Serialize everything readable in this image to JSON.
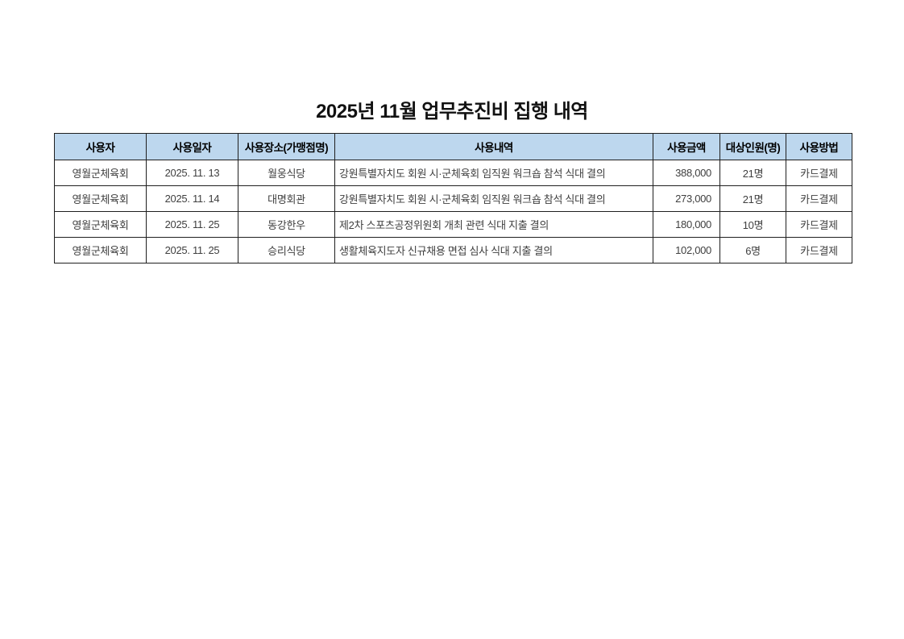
{
  "title": "2025년 11월 업무추진비 집행 내역",
  "table": {
    "headers": [
      "사용자",
      "사용일자",
      "사용장소(가맹점명)",
      "사용내역",
      "사용금액",
      "대상인원(명)",
      "사용방법"
    ],
    "rows": [
      [
        "영월군체육회",
        "2025. 11. 13",
        "월웅식당",
        "강원특별자치도 회원 시·군체육회 임직원 워크숍 참석 식대 결의",
        "388,000",
        "21명",
        "카드결제"
      ],
      [
        "영월군체육회",
        "2025. 11. 14",
        "대명회관",
        "강원특별자치도 회원 시·군체육회 임직원 워크숍 참석 식대 결의",
        "273,000",
        "21명",
        "카드결제"
      ],
      [
        "영월군체육회",
        "2025. 11. 25",
        "동강한우",
        "제2차 스포츠공정위원회 개최 관련 식대 지출 결의",
        "180,000",
        "10명",
        "카드결제"
      ],
      [
        "영월군체육회",
        "2025. 11. 25",
        "승리식당",
        "생활체육지도자 신규채용 면접 심사 식대 지출 결의",
        "102,000",
        "6명",
        "카드결제"
      ]
    ],
    "colors": {
      "header_bg": "#bdd7ee",
      "border": "#1f1f1f",
      "body_text": "#404040"
    }
  }
}
